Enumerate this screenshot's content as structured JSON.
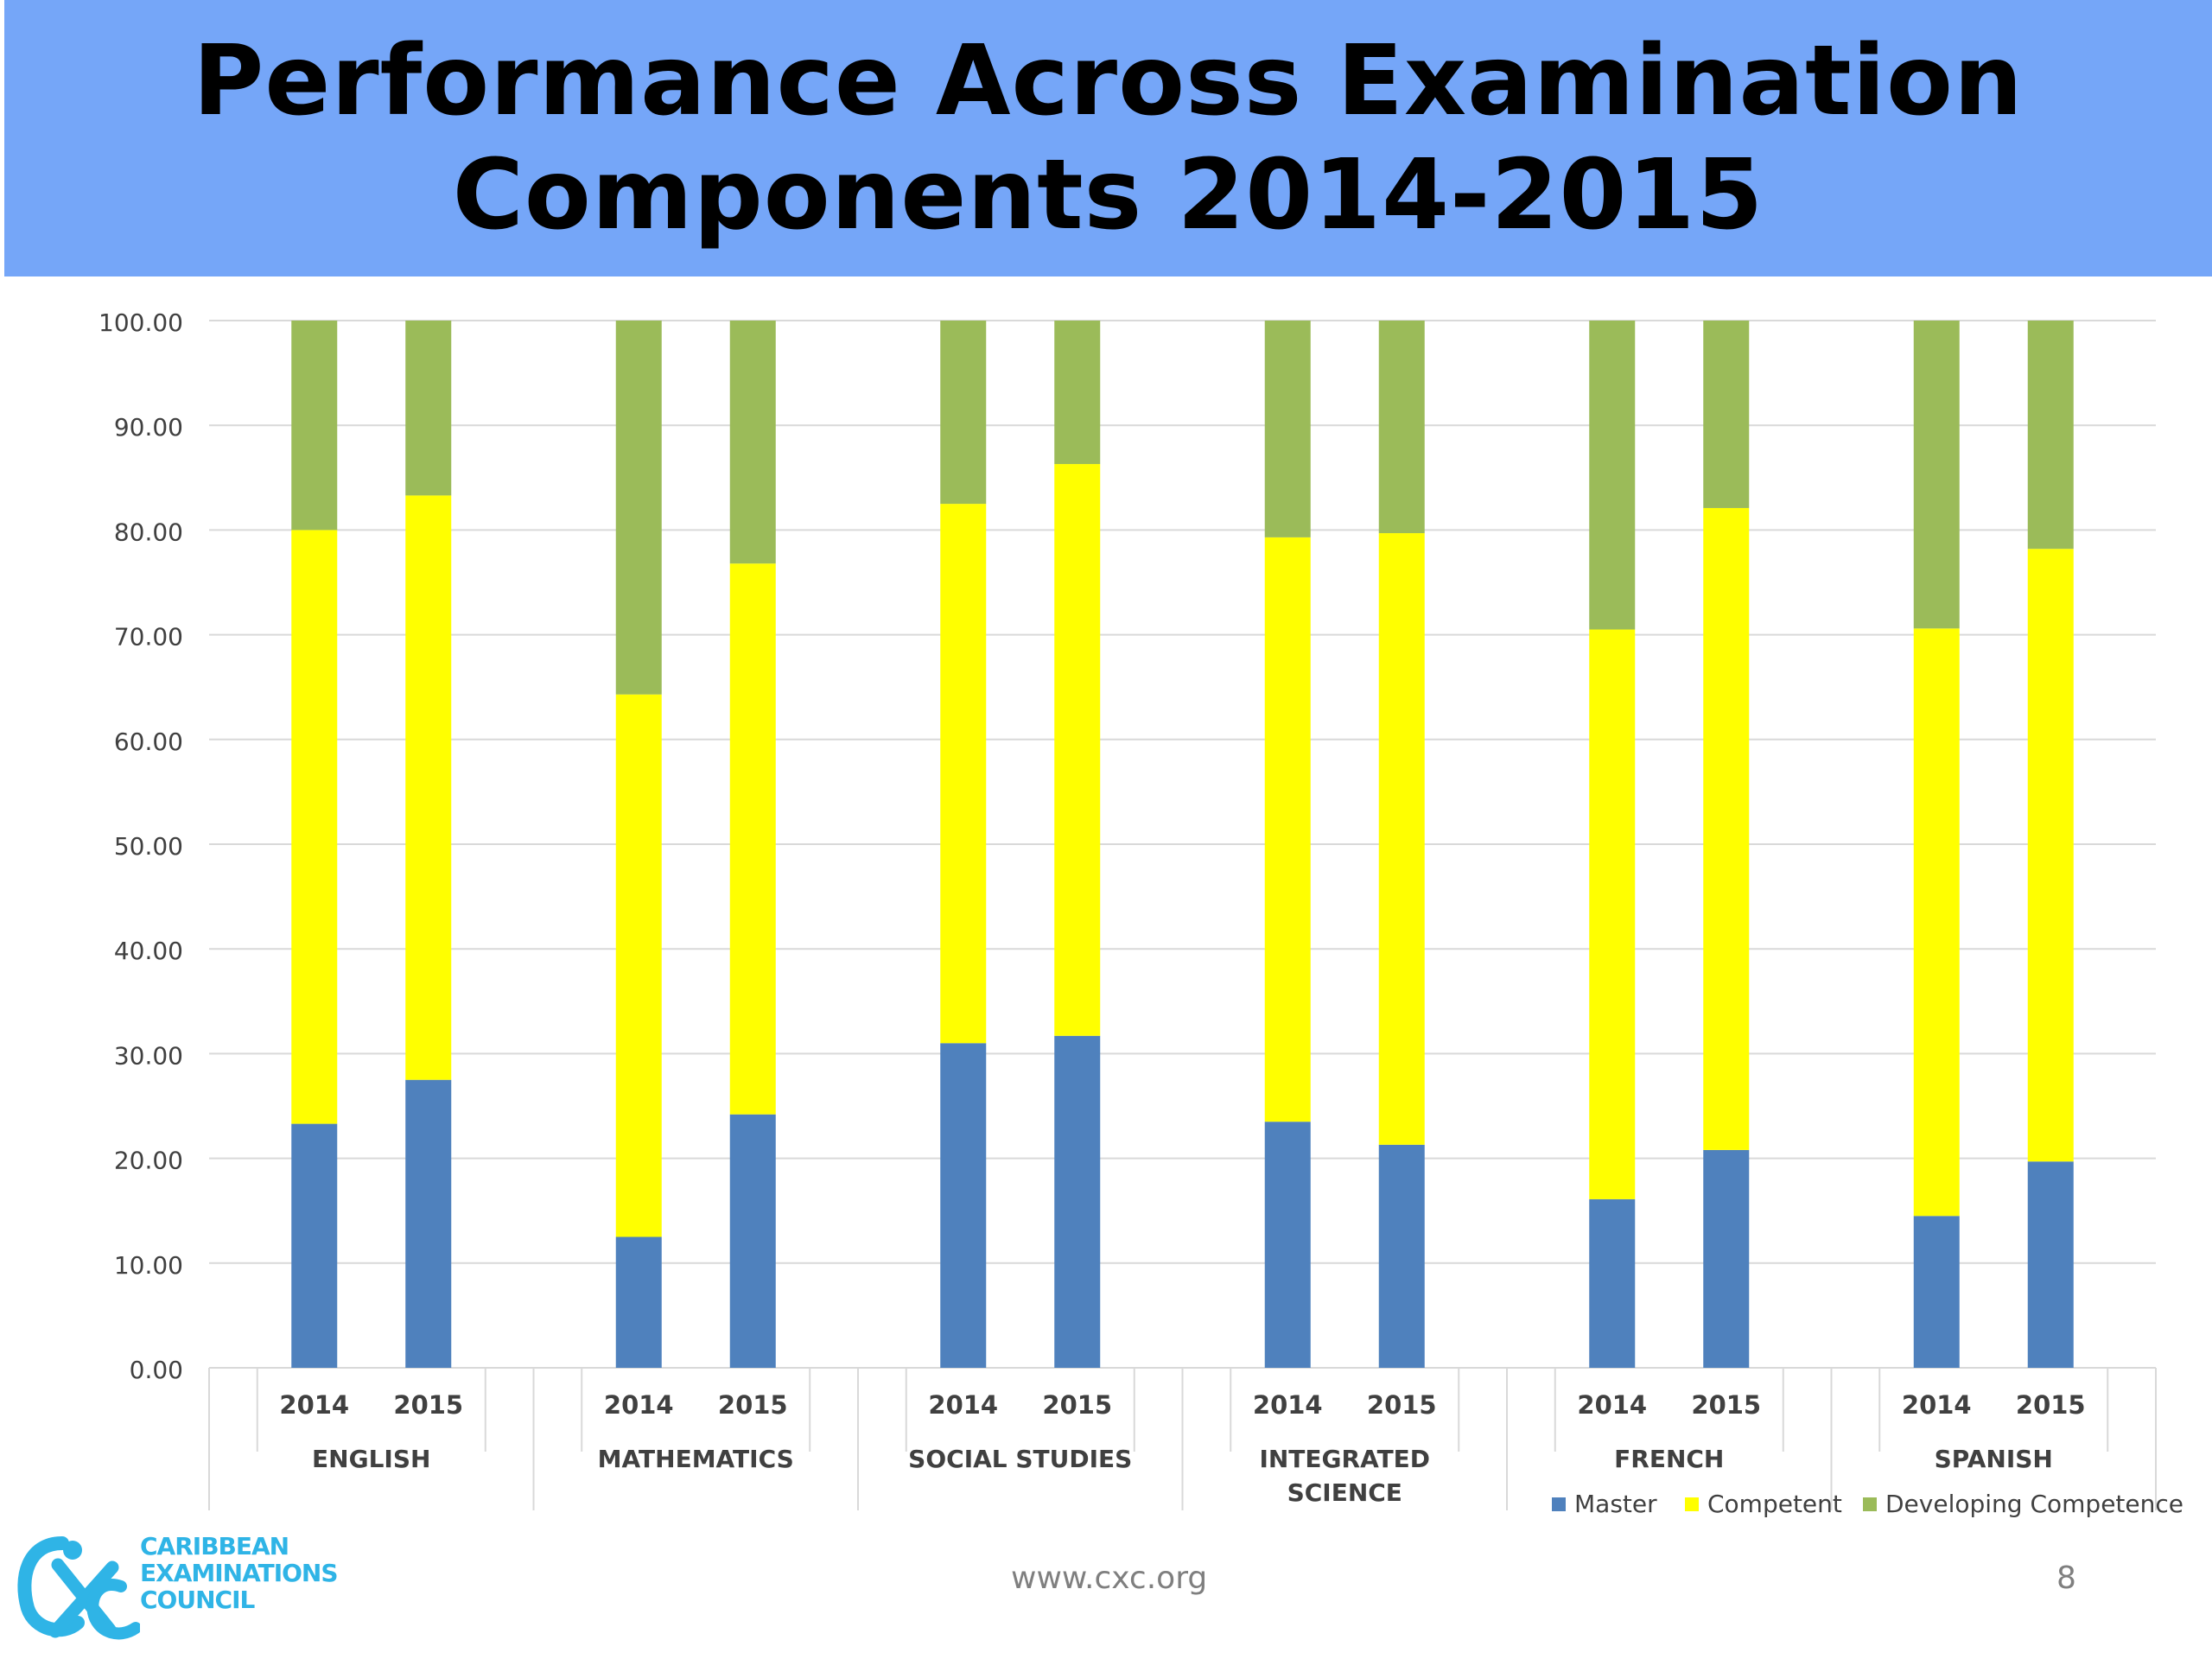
{
  "header": {
    "title_line1": "Performance Across Examination",
    "title_line2": "Components 2014-2015"
  },
  "chart_data": {
    "type": "bar",
    "stacked": true,
    "title": "",
    "xlabel": "",
    "ylabel": "",
    "ylim": [
      0,
      100
    ],
    "yticks": [
      "0.00",
      "10.00",
      "20.00",
      "30.00",
      "40.00",
      "50.00",
      "60.00",
      "70.00",
      "80.00",
      "90.00",
      "100.00"
    ],
    "groups": [
      {
        "label_lines": [
          "ENGLISH"
        ],
        "years": [
          "2014",
          "2015"
        ]
      },
      {
        "label_lines": [
          "MATHEMATICS"
        ],
        "years": [
          "2014",
          "2015"
        ]
      },
      {
        "label_lines": [
          "SOCIAL STUDIES"
        ],
        "years": [
          "2014",
          "2015"
        ]
      },
      {
        "label_lines": [
          "INTEGRATED",
          "SCIENCE"
        ],
        "years": [
          "2014",
          "2015"
        ]
      },
      {
        "label_lines": [
          "FRENCH"
        ],
        "years": [
          "2014",
          "2015"
        ]
      },
      {
        "label_lines": [
          "SPANISH"
        ],
        "years": [
          "2014",
          "2015"
        ]
      }
    ],
    "series": [
      {
        "name": "Master",
        "color": "#4f81bd",
        "values": [
          23.3,
          27.5,
          12.5,
          24.2,
          31.0,
          31.7,
          23.5,
          21.3,
          16.1,
          20.8,
          14.5,
          19.7
        ]
      },
      {
        "name": "Competent",
        "color": "#ffff00",
        "values": [
          56.7,
          55.8,
          51.8,
          52.6,
          51.5,
          54.6,
          55.8,
          58.4,
          54.4,
          61.3,
          56.1,
          58.5
        ]
      },
      {
        "name": "Developing Competence",
        "color": "#9bbb59",
        "values": [
          20.0,
          16.7,
          35.7,
          23.2,
          17.5,
          13.7,
          20.7,
          20.3,
          29.5,
          17.9,
          29.4,
          21.8
        ]
      }
    ],
    "legend_position": "bottom-right",
    "grid": true
  },
  "footer": {
    "url": "www.cxc.org",
    "page_number": "8",
    "logo_lines": [
      "CARIBBEAN",
      "EXAMINATIONS",
      "COUNCIL"
    ],
    "logo_color": "#2fb4e6"
  }
}
